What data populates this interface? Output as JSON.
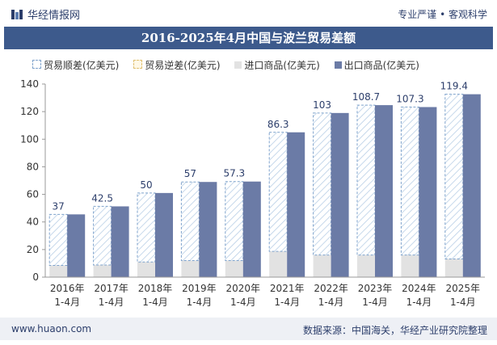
{
  "header": {
    "brand": "华经情报网",
    "tagline": "专业严谨 • 客观科学"
  },
  "footer": {
    "site": "www.huaon.com",
    "source": "数据来源：中国海关，华经产业研究院整理"
  },
  "colors": {
    "surplus": "#ffffff",
    "surplus_stroke": "#7fa3cc",
    "deficit": "#f0e0b0",
    "imports": "#e2e2e2",
    "exports": "#6b7ba6",
    "title_bg": "#3d5a8c"
  },
  "chart_data": {
    "type": "bar",
    "title": "2016-2025年4月中国与波兰贸易差额",
    "categories": [
      "2016年\n1-4月",
      "2017年\n1-4月",
      "2018年\n1-4月",
      "2019年\n1-4月",
      "2020年\n1-4月",
      "2021年\n1-4月",
      "2022年\n1-4月",
      "2023年\n1-4月",
      "2024年\n1-4月",
      "2025年\n1-4月"
    ],
    "ylim": [
      0,
      140
    ],
    "yticks": [
      0,
      20,
      40,
      60,
      80,
      100,
      120,
      140
    ],
    "series": [
      {
        "name": "贸易顺差(亿美元)",
        "values": [
          37,
          42.5,
          50,
          57,
          57.3,
          86.3,
          103,
          108.7,
          107.3,
          119.4
        ]
      },
      {
        "name": "贸易逆差(亿美元)",
        "values": [
          0,
          0,
          0,
          0,
          0,
          0,
          0,
          0,
          0,
          0
        ]
      },
      {
        "name": "进口商品(亿美元)",
        "values": [
          8.5,
          8.8,
          11,
          12,
          12,
          18.7,
          16,
          16,
          16,
          13.2
        ]
      },
      {
        "name": "出口商品(亿美元)",
        "values": [
          45.5,
          51.3,
          61,
          69,
          69.3,
          105,
          119,
          124.7,
          123.3,
          132.6
        ]
      }
    ],
    "data_labels": [
      "37",
      "42.5",
      "50",
      "57",
      "57.3",
      "86.3",
      "103",
      "108.7",
      "107.3",
      "119.4"
    ],
    "grid": false,
    "legend_position": "top"
  }
}
